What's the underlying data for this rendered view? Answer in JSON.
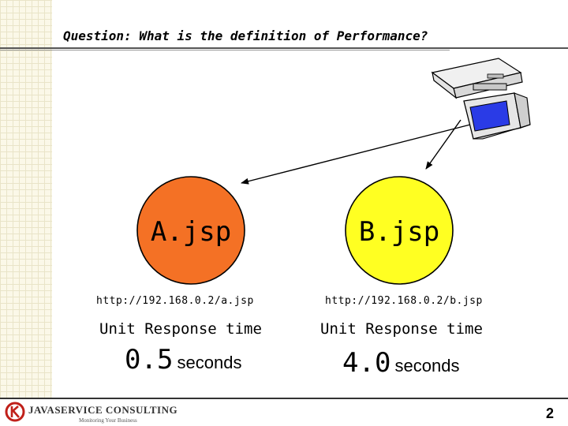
{
  "slide": {
    "title": "Question: What is the definition of Performance?",
    "page_number": "2"
  },
  "footer": {
    "logo_text": "JAVASERVICE CONSULTING",
    "logo_tagline": "Monitoring Your Business"
  },
  "pages": [
    {
      "label": "A.jsp",
      "url": "http://192.168.0.2/a.jsp",
      "metric_label": "Unit Response time",
      "value": "0.5",
      "unit": "seconds",
      "color": "#f47125"
    },
    {
      "label": "B.jsp",
      "url": "http://192.168.0.2/b.jsp",
      "metric_label": "Unit Response time",
      "value": "4.0",
      "unit": "seconds",
      "color": "#ffff22"
    }
  ]
}
